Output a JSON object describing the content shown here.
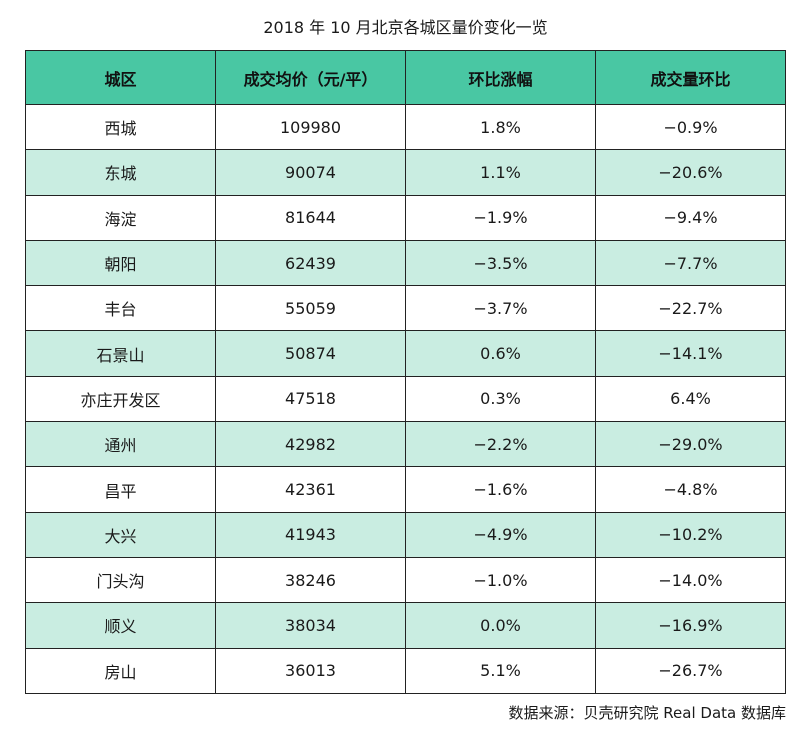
{
  "chart_data": {
    "type": "table",
    "title": "2018 年 10 月北京各城区量价变化一览",
    "columns": [
      "城区",
      "成交均价（元/平）",
      "环比涨幅",
      "成交量环比"
    ],
    "rows": [
      [
        "西城",
        "109980",
        "1.8%",
        "−0.9%"
      ],
      [
        "东城",
        "90074",
        "1.1%",
        "−20.6%"
      ],
      [
        "海淀",
        "81644",
        "−1.9%",
        "−9.4%"
      ],
      [
        "朝阳",
        "62439",
        "−3.5%",
        "−7.7%"
      ],
      [
        "丰台",
        "55059",
        "−3.7%",
        "−22.7%"
      ],
      [
        "石景山",
        "50874",
        "0.6%",
        "−14.1%"
      ],
      [
        "亦庄开发区",
        "47518",
        "0.3%",
        "6.4%"
      ],
      [
        "通州",
        "42982",
        "−2.2%",
        "−29.0%"
      ],
      [
        "昌平",
        "42361",
        "−1.6%",
        "−4.8%"
      ],
      [
        "大兴",
        "41943",
        "−4.9%",
        "−10.2%"
      ],
      [
        "门头沟",
        "38246",
        "−1.0%",
        "−14.0%"
      ],
      [
        "顺义",
        "38034",
        "0.0%",
        "−16.9%"
      ],
      [
        "房山",
        "36013",
        "5.1%",
        "−26.7%"
      ]
    ],
    "source": "数据来源：贝壳研究院 Real Data 数据库"
  },
  "colors": {
    "header_bg": "#49c7a3",
    "alt_row_bg": "#c9ede1",
    "border": "#222222"
  }
}
